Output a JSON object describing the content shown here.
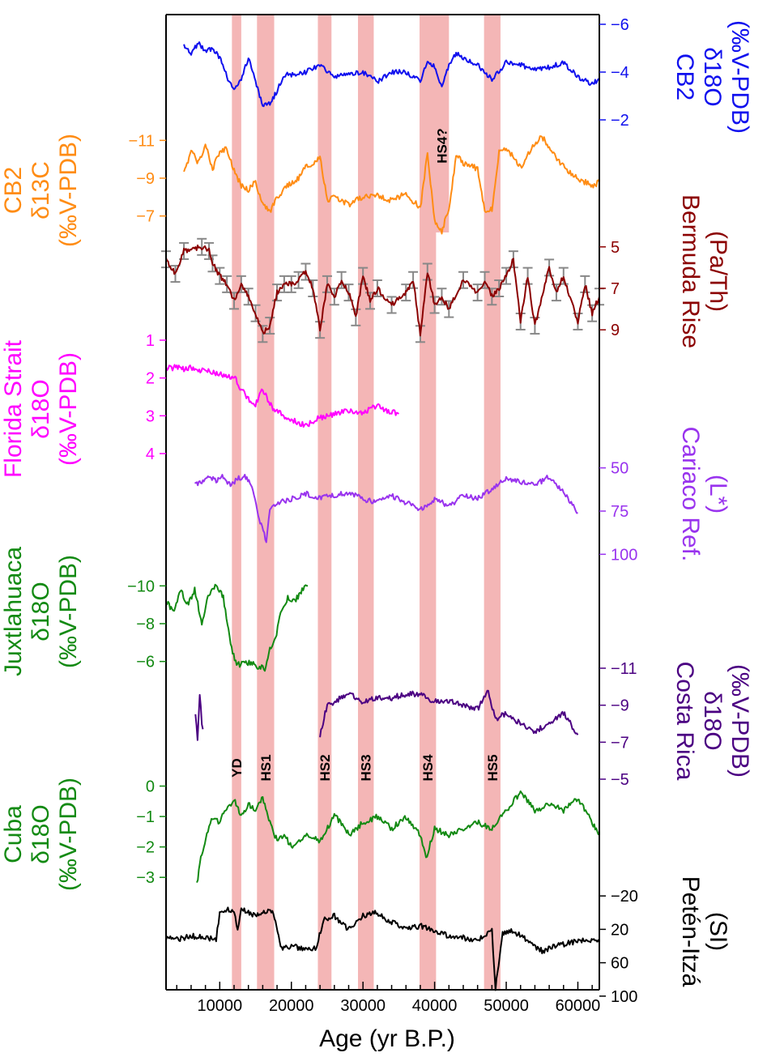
{
  "chart_data": {
    "type": "line",
    "title": "",
    "xlabel": "Age (yr B.P.)",
    "xlim": [
      2500,
      63000
    ],
    "x_ticks": [
      10000,
      20000,
      30000,
      40000,
      50000,
      60000
    ],
    "x_tick_labels": [
      "10000",
      "20000",
      "30000",
      "40000",
      "50000",
      "60000"
    ],
    "shaded_events": [
      {
        "name": "YD",
        "start": 11700,
        "end": 13000
      },
      {
        "name": "HS1",
        "start": 15200,
        "end": 17600
      },
      {
        "name": "HS2",
        "start": 23700,
        "end": 25600
      },
      {
        "name": "HS3",
        "start": 29300,
        "end": 31500
      },
      {
        "name": "HS4",
        "start": 37900,
        "end": 40200
      },
      {
        "name": "HS5",
        "start": 46900,
        "end": 49200
      },
      {
        "name": "HS4?",
        "start": 40000,
        "end": 42000
      }
    ],
    "hs4q_label": "HS4?",
    "series": [
      {
        "name": "CB2 d18O",
        "label_lines": [
          "CB2",
          "δ18O",
          "(‰V-PDB)"
        ],
        "color": "#1010ee",
        "side": "right",
        "ticks": [
          -6,
          -4,
          -2
        ],
        "tick_labels": [
          "−6",
          "−4",
          "−2"
        ],
        "range": [
          -6,
          -2
        ],
        "x": [
          5000,
          6000,
          7000,
          8000,
          9000,
          10000,
          11000,
          12000,
          13000,
          14000,
          15000,
          16000,
          17000,
          18000,
          19000,
          20000,
          22000,
          24000,
          26000,
          28000,
          30000,
          32000,
          34000,
          36000,
          38000,
          39000,
          40000,
          41000,
          42000,
          43000,
          44000,
          46000,
          48000,
          50000,
          52000,
          54000,
          56000,
          58000,
          60000,
          62000,
          63000
        ],
        "values": [
          -5.1,
          -4.8,
          -5.2,
          -4.9,
          -5.0,
          -4.6,
          -3.8,
          -3.3,
          -3.7,
          -4.6,
          -3.6,
          -2.6,
          -2.7,
          -3.2,
          -3.9,
          -3.9,
          -4.0,
          -4.3,
          -3.8,
          -3.9,
          -4.0,
          -3.6,
          -4.0,
          -4.0,
          -3.6,
          -4.5,
          -4.2,
          -3.4,
          -4.3,
          -4.8,
          -4.6,
          -4.3,
          -3.7,
          -4.4,
          -4.3,
          -4.1,
          -4.2,
          -4.4,
          -3.8,
          -3.5,
          -3.7
        ]
      },
      {
        "name": "CB2 d13C",
        "label_lines": [
          "CB2",
          "δ13C",
          "(‰V-PDB)"
        ],
        "color": "#ff8c14",
        "side": "left",
        "ticks": [
          -11,
          -9,
          -7
        ],
        "tick_labels": [
          "−11",
          "−9",
          "−7"
        ],
        "range": [
          -12,
          -6
        ],
        "x": [
          5000,
          6000,
          7000,
          8000,
          9000,
          10000,
          11000,
          12000,
          13000,
          14000,
          15000,
          16000,
          17000,
          18000,
          19000,
          20000,
          21000,
          22000,
          23000,
          24000,
          25000,
          26000,
          28000,
          30000,
          32000,
          34000,
          36000,
          38000,
          39000,
          40000,
          41000,
          42000,
          43000,
          44000,
          46000,
          47000,
          48000,
          49000,
          50000,
          52000,
          54000,
          55000,
          56000,
          58000,
          60000,
          62000,
          63000
        ],
        "values": [
          -9.2,
          -10.5,
          -9.8,
          -10.8,
          -9.5,
          -10.4,
          -10.6,
          -9.4,
          -8.6,
          -8.4,
          -8.8,
          -7.6,
          -7.2,
          -8.0,
          -8.4,
          -8.8,
          -9.0,
          -9.6,
          -9.8,
          -10.2,
          -7.8,
          -8.0,
          -7.6,
          -8.0,
          -8.1,
          -7.8,
          -8.2,
          -7.4,
          -10.3,
          -6.8,
          -6.2,
          -7.4,
          -10.2,
          -9.8,
          -9.5,
          -7.2,
          -7.4,
          -10.4,
          -10.6,
          -9.6,
          -10.8,
          -11.2,
          -10.6,
          -9.6,
          -9.0,
          -8.6,
          -8.8
        ]
      },
      {
        "name": "Bermuda Rise Pa/Th",
        "label_lines": [
          "Bermuda Rise",
          "(Pa/Th)"
        ],
        "color": "#8b0000",
        "side": "right",
        "ticks": [
          5,
          7,
          9
        ],
        "tick_labels": [
          "5",
          "7",
          "9"
        ],
        "range": [
          4.5,
          9.5
        ],
        "x": [
          2500,
          3800,
          5000,
          7500,
          8500,
          9000,
          10000,
          11000,
          12000,
          13000,
          14000,
          15000,
          16000,
          17000,
          18000,
          19000,
          20000,
          21000,
          22000,
          23000,
          24000,
          25000,
          26000,
          27000,
          28000,
          29000,
          30000,
          31000,
          32000,
          34000,
          36000,
          37000,
          38000,
          39000,
          40000,
          41000,
          42000,
          44000,
          46000,
          47000,
          48000,
          49000,
          50000,
          51000,
          52000,
          53000,
          54000,
          56000,
          57000,
          58000,
          60000,
          61000,
          62000,
          63000
        ],
        "values": [
          5.6,
          6.3,
          5.2,
          5.0,
          5.2,
          5.8,
          6.4,
          6.8,
          7.6,
          6.8,
          7.4,
          8.2,
          9.2,
          8.8,
          7.2,
          6.8,
          6.8,
          6.6,
          6.2,
          7.0,
          9.0,
          6.8,
          7.4,
          6.6,
          7.2,
          8.4,
          6.4,
          7.6,
          7.0,
          7.8,
          7.2,
          6.6,
          9.2,
          6.2,
          7.8,
          7.4,
          8.0,
          6.6,
          7.2,
          6.6,
          7.4,
          7.0,
          6.4,
          5.6,
          8.6,
          6.4,
          8.8,
          6.0,
          7.2,
          6.4,
          8.6,
          6.8,
          8.2,
          7.4
        ]
      },
      {
        "name": "Florida Strait d18O",
        "label_lines": [
          "Florida Strait",
          "δ18O",
          "(‰V-PDB)"
        ],
        "color": "#ff00ff",
        "side": "left",
        "ticks": [
          1,
          2,
          3,
          4
        ],
        "tick_labels": [
          "1",
          "2",
          "3",
          "4"
        ],
        "range": [
          1,
          4
        ],
        "x": [
          2500,
          4000,
          5000,
          6000,
          7000,
          8000,
          9000,
          10000,
          11000,
          12000,
          13000,
          14000,
          15000,
          16000,
          17000,
          18000,
          20000,
          22000,
          24000,
          26000,
          28000,
          30000,
          32000,
          34000,
          35000
        ],
        "values": [
          1.75,
          1.72,
          1.78,
          1.72,
          1.8,
          1.78,
          1.85,
          1.9,
          2.0,
          1.95,
          2.3,
          2.55,
          2.7,
          2.3,
          2.7,
          2.9,
          3.1,
          3.25,
          3.05,
          2.95,
          2.85,
          2.9,
          2.75,
          2.9,
          2.95
        ]
      },
      {
        "name": "Cariaco Reflectance",
        "label_lines": [
          "Cariaco Ref.",
          "(L*)"
        ],
        "color": "#9933ee",
        "side": "right",
        "ticks": [
          50,
          75,
          100
        ],
        "tick_labels": [
          "50",
          "75",
          "100"
        ],
        "range": [
          45,
          105
        ],
        "x": [
          6500,
          7500,
          8500,
          9500,
          10500,
          11500,
          12500,
          13500,
          14500,
          15500,
          16500,
          17000,
          18000,
          20000,
          22000,
          24000,
          26000,
          28000,
          30000,
          32000,
          34000,
          36000,
          38000,
          40000,
          42000,
          44000,
          46000,
          48000,
          50000,
          52000,
          54000,
          56000,
          58000,
          60000
        ],
        "values": [
          60,
          58,
          55,
          57,
          55,
          60,
          56,
          55,
          60,
          80,
          92,
          74,
          70,
          68,
          65,
          67,
          66,
          64,
          68,
          70,
          66,
          70,
          74,
          68,
          72,
          66,
          68,
          62,
          56,
          58,
          60,
          55,
          64,
          76
        ]
      },
      {
        "name": "Juxtlahuaca d18O",
        "label_lines": [
          "Juxtlahuaca",
          "δ18O",
          "(‰V-PDB)"
        ],
        "color": "#138a13",
        "side": "left",
        "ticks": [
          -10,
          -8,
          -6
        ],
        "tick_labels": [
          "−10",
          "−8",
          "−6"
        ],
        "range": [
          -11,
          -5
        ],
        "x": [
          2500,
          3500,
          4500,
          5500,
          6500,
          7500,
          8500,
          9500,
          10500,
          11800,
          12500,
          13500,
          16300,
          17000,
          17800,
          18500,
          19500,
          20500,
          21500,
          22300
        ],
        "values": [
          -9.2,
          -8.6,
          -9.8,
          -9.0,
          -9.8,
          -8.0,
          -9.6,
          -10.0,
          -9.4,
          -6.4,
          -5.8,
          -6.0,
          -5.6,
          -6.6,
          -7.2,
          -8.6,
          -9.4,
          -9.2,
          -9.8,
          -10.0
        ]
      },
      {
        "name": "Costa Rica d18O",
        "label_lines": [
          "Costa Rica",
          "δ18O",
          "(‰V-PDB)"
        ],
        "color": "#4b0082",
        "side": "right",
        "ticks": [
          -11,
          -9,
          -7,
          -5
        ],
        "tick_labels": [
          "−11",
          "−9",
          "−7",
          "−5"
        ],
        "range": [
          -11,
          -5
        ],
        "x": [
          6600,
          6900,
          7200,
          7500,
          7800,
          24000,
          25000,
          27000,
          28000,
          30000,
          32000,
          34000,
          36000,
          38000,
          40000,
          42000,
          44000,
          46000,
          47500,
          48500,
          50000,
          52000,
          54000,
          56000,
          58000,
          60000
        ],
        "values": [
          -8.4,
          -7.2,
          -9.6,
          -8.0,
          -7.6,
          -7.4,
          -9.0,
          -9.4,
          -9.6,
          -9.2,
          -9.4,
          -9.4,
          -9.6,
          -9.6,
          -9.2,
          -9.2,
          -9.0,
          -8.8,
          -9.8,
          -8.2,
          -8.6,
          -8.0,
          -7.6,
          -8.0,
          -8.6,
          -7.4
        ]
      },
      {
        "name": "Cuba d18O",
        "label_lines": [
          "Cuba",
          "δ18O",
          "(‰V-PDB)"
        ],
        "color": "#138a13",
        "side": "left",
        "ticks": [
          0,
          -1,
          -2,
          -3
        ],
        "tick_labels": [
          "0",
          "−1",
          "−2",
          "−3"
        ],
        "range": [
          0.2,
          -3.5
        ],
        "x": [
          6800,
          7500,
          8200,
          9000,
          9800,
          12000,
          13000,
          14000,
          15000,
          16000,
          17000,
          18000,
          19000,
          20000,
          22000,
          24000,
          26000,
          27000,
          28000,
          30000,
          32000,
          34000,
          36000,
          38000,
          38800,
          40000,
          42000,
          44000,
          46000,
          48000,
          50000,
          52000,
          54000,
          56000,
          58000,
          60000,
          62000,
          63000
        ],
        "values": [
          -3.2,
          -2.2,
          -1.6,
          -1.0,
          -1.2,
          -0.4,
          -1.0,
          -0.6,
          -0.8,
          -0.4,
          -1.2,
          -1.8,
          -1.6,
          -2.0,
          -1.6,
          -1.8,
          -1.0,
          -1.2,
          -1.6,
          -1.2,
          -1.0,
          -1.4,
          -1.0,
          -1.6,
          -2.4,
          -1.4,
          -1.6,
          -1.4,
          -1.2,
          -1.4,
          -0.8,
          -0.2,
          -0.8,
          -0.6,
          -0.8,
          -0.4,
          -1.2,
          -1.6
        ]
      },
      {
        "name": "Peten-Itza SI",
        "label_lines": [
          "Petén-Itzá",
          "(SI)"
        ],
        "color": "#000000",
        "side": "right",
        "ticks": [
          100,
          60,
          20,
          -20
        ],
        "tick_labels": [
          "100",
          "60",
          "20",
          "−20"
        ],
        "range": [
          -25,
          105
        ],
        "x": [
          2500,
          4000,
          6000,
          8000,
          9500,
          10000,
          11000,
          12000,
          12500,
          13000,
          14000,
          15000,
          16000,
          17500,
          18500,
          20000,
          22000,
          23500,
          24500,
          26000,
          28000,
          30000,
          32000,
          34000,
          36000,
          38000,
          40000,
          42000,
          44000,
          46000,
          48000,
          48500,
          49500,
          51000,
          53000,
          55000,
          57000,
          59000,
          61000,
          63000
        ],
        "values": [
          30,
          32,
          28,
          30,
          32,
          0,
          -4,
          -2,
          20,
          -4,
          0,
          4,
          -2,
          0,
          42,
          40,
          44,
          42,
          8,
          4,
          20,
          4,
          0,
          12,
          18,
          16,
          22,
          28,
          30,
          34,
          20,
          90,
          24,
          22,
          34,
          46,
          40,
          36,
          32,
          36
        ]
      }
    ]
  }
}
